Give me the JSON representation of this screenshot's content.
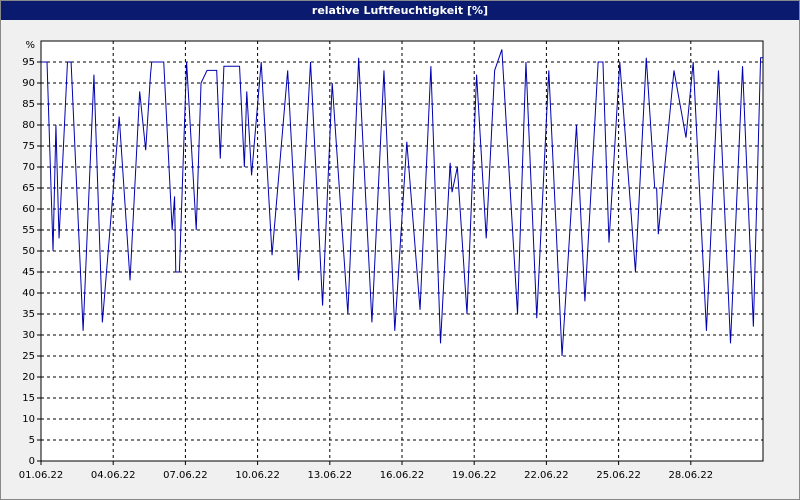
{
  "chart_data": {
    "type": "line",
    "title": "relative Luftfeuchtigkeit [%]",
    "y_unit": "%",
    "x": [
      0,
      0.25,
      0.5,
      0.62,
      0.75,
      1.1,
      1.25,
      1.75,
      2.2,
      2.55,
      3.25,
      3.7,
      4.1,
      4.35,
      4.55,
      4.6,
      5.1,
      5.45,
      5.55,
      5.6,
      5.75,
      6.05,
      6.45,
      6.65,
      6.9,
      7.3,
      7.45,
      7.6,
      8.25,
      8.45,
      8.55,
      8.75,
      9.15,
      9.6,
      10.25,
      10.7,
      11.2,
      11.7,
      12.1,
      12.75,
      13.2,
      13.75,
      14.25,
      14.7,
      15.2,
      15.75,
      16.2,
      16.6,
      17.0,
      17.08,
      17.3,
      17.7,
      18.1,
      18.5,
      18.85,
      19.15,
      19.8,
      20.15,
      20.6,
      21.1,
      21.65,
      22.25,
      22.6,
      23.15,
      23.35,
      23.6,
      24.05,
      24.7,
      25.15,
      25.5,
      25.58,
      25.65,
      26.3,
      26.8,
      27.1,
      27.65,
      28.15,
      28.65,
      29.15,
      29.6,
      29.9,
      30
    ],
    "series": [
      {
        "name": "relative Luftfeuchtigkeit",
        "color": "#0000b0",
        "values": [
          95,
          95,
          50,
          80,
          53,
          95,
          95,
          31,
          92,
          33,
          82,
          43,
          88,
          74,
          92,
          95,
          95,
          55,
          63,
          45,
          45,
          95,
          55,
          90,
          93,
          93,
          72,
          94,
          94,
          70,
          88,
          68,
          95,
          49,
          93,
          43,
          95,
          37,
          90,
          35,
          96,
          33,
          93,
          31,
          76,
          36,
          94,
          28,
          71,
          64,
          70,
          35,
          92,
          53,
          93,
          98,
          35,
          95,
          34,
          93,
          25,
          80,
          38,
          95,
          95,
          52,
          95,
          45,
          96,
          65,
          65,
          54,
          93,
          77,
          95,
          31,
          93,
          28,
          94,
          32,
          96,
          96
        ]
      }
    ],
    "xlim": [
      0,
      30
    ],
    "xticks": [
      {
        "value": 0,
        "label": "01.06.22"
      },
      {
        "value": 3,
        "label": "04.06.22"
      },
      {
        "value": 6,
        "label": "07.06.22"
      },
      {
        "value": 9,
        "label": "10.06.22"
      },
      {
        "value": 12,
        "label": "13.06.22"
      },
      {
        "value": 15,
        "label": "16.06.22"
      },
      {
        "value": 18,
        "label": "19.06.22"
      },
      {
        "value": 21,
        "label": "22.06.22"
      },
      {
        "value": 24,
        "label": "25.06.22"
      },
      {
        "value": 27,
        "label": "28.06.22"
      }
    ],
    "ylim": [
      0,
      100
    ],
    "yticks": [
      0,
      5,
      10,
      15,
      20,
      25,
      30,
      35,
      40,
      45,
      50,
      55,
      60,
      65,
      70,
      75,
      80,
      85,
      90,
      95
    ],
    "grid": true
  }
}
